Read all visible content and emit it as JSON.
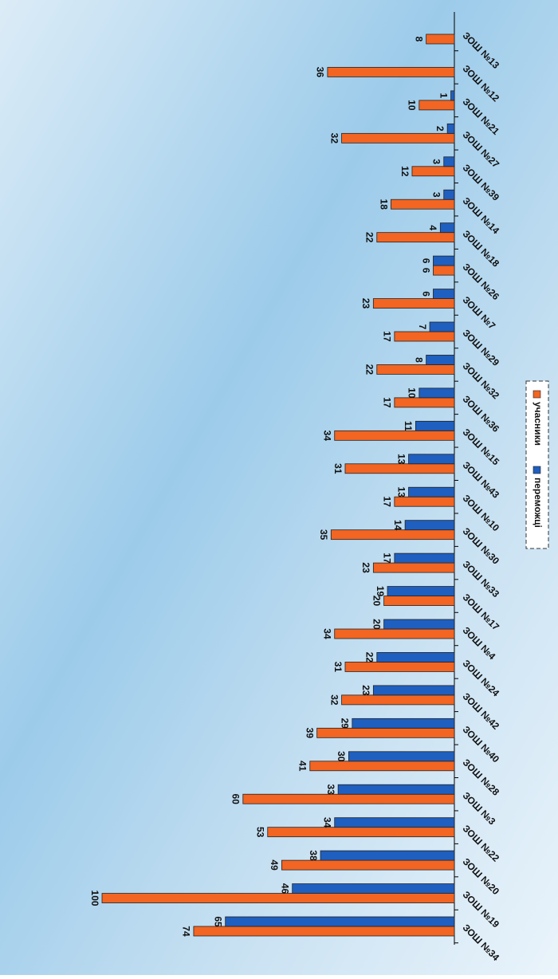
{
  "chart_data": {
    "type": "bar",
    "orientation": "rotated",
    "categories": [
      "ЗОШ №34",
      "ЗОШ №19",
      "ЗОШ №20",
      "ЗОШ №22",
      "ЗОШ №3",
      "ЗОШ №28",
      "ЗОШ №40",
      "ЗОШ №42",
      "ЗОШ №24",
      "ЗОШ №4",
      "ЗОШ №17",
      "ЗОШ №33",
      "ЗОШ №30",
      "ЗОШ №10",
      "ЗОШ №43",
      "ЗОШ №15",
      "ЗОШ №36",
      "ЗОШ №32",
      "ЗОШ №29",
      "ЗОШ №7",
      "ЗОШ №26",
      "ЗОШ №18",
      "ЗОШ №14",
      "ЗОШ №39",
      "ЗОШ №27",
      "ЗОШ №21",
      "ЗОШ №12",
      "ЗОШ №13"
    ],
    "series": [
      {
        "name": "учасники",
        "color": "#f26522",
        "values": [
          74,
          100,
          49,
          53,
          60,
          41,
          39,
          32,
          31,
          34,
          20,
          23,
          35,
          17,
          31,
          34,
          17,
          22,
          17,
          23,
          6,
          22,
          18,
          12,
          32,
          10,
          36,
          8
        ]
      },
      {
        "name": "переможці",
        "color": "#1f5fbf",
        "values": [
          65,
          46,
          38,
          34,
          33,
          30,
          29,
          23,
          22,
          20,
          19,
          17,
          14,
          13,
          13,
          11,
          10,
          8,
          7,
          6,
          6,
          4,
          3,
          3,
          2,
          1,
          null,
          null
        ]
      }
    ],
    "ylim": [
      0,
      100
    ]
  }
}
